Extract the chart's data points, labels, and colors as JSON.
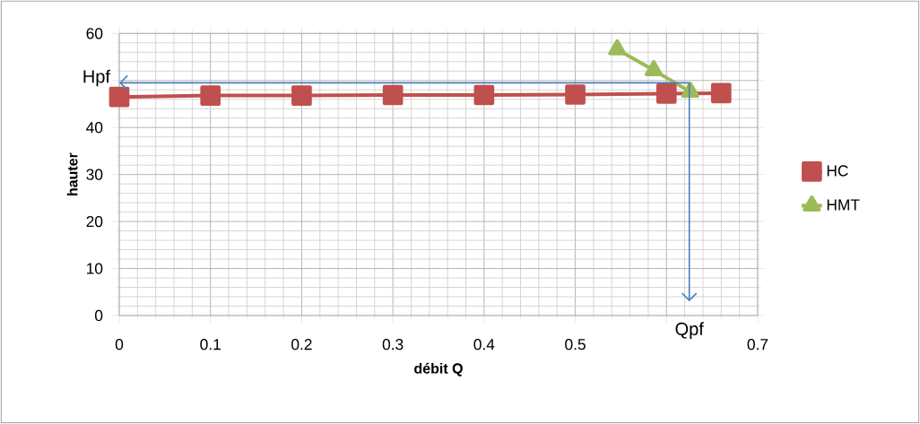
{
  "chart_data": {
    "type": "line",
    "xlabel": "débit Q",
    "ylabel": "hauter",
    "series": [
      {
        "name": "HC",
        "color": "#c0504d",
        "marker": "square",
        "x": [
          0,
          0.1,
          0.2,
          0.3,
          0.4,
          0.5,
          0.6,
          0.66
        ],
        "values": [
          46.5,
          46.8,
          46.8,
          46.9,
          46.9,
          47,
          47.2,
          47.3
        ]
      },
      {
        "name": "HMT",
        "color": "#9bbb59",
        "marker": "triangle",
        "x": [
          0.546,
          0.586,
          0.626
        ],
        "values": [
          56.6,
          52.2,
          47.6
        ]
      }
    ],
    "xlim": [
      0,
      0.7
    ],
    "xticks": [
      0,
      0.1,
      0.2,
      0.3,
      0.4,
      0.5,
      {
        "value": 0.6,
        "label": null
      },
      0.7
    ],
    "ylim": [
      0,
      60
    ],
    "yticks": [
      0,
      10,
      20,
      30,
      40,
      {
        "value": 50,
        "label": null
      },
      60
    ],
    "grid": true,
    "legend": "right",
    "line_style": "solid",
    "ref_lines": [
      {
        "axis": "y",
        "value": 49.5,
        "label": "Hpf",
        "color": "#4a7ebb"
      },
      {
        "axis": "x",
        "value": 0.625,
        "label": "Qpf",
        "color": "#4a7ebb"
      }
    ]
  }
}
